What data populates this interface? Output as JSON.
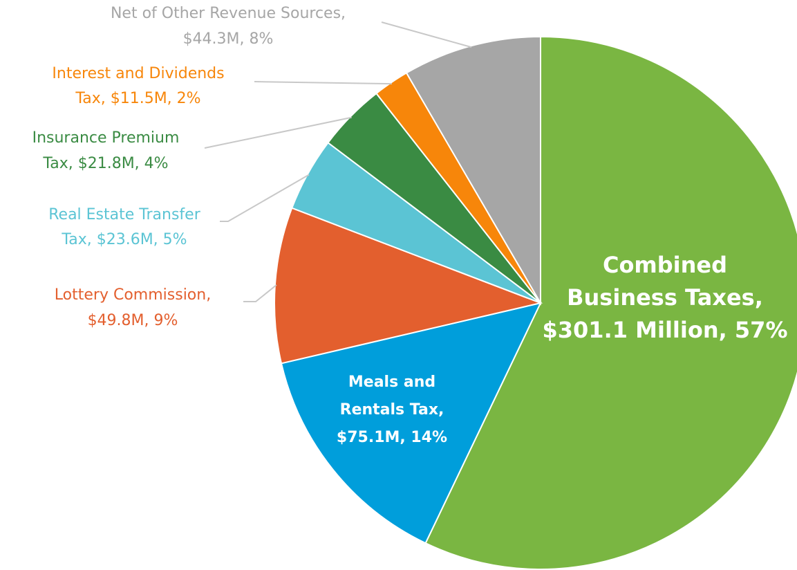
{
  "chart_data": {
    "type": "pie",
    "values": [
      301.1,
      75.1,
      49.8,
      23.6,
      21.8,
      11.5,
      44.3
    ],
    "labels": [
      [
        "Combined",
        "Business Taxes,",
        "$301.1 Million, 57%"
      ],
      [
        "Meals and",
        "Rentals Tax,",
        "$75.1M, 14%"
      ],
      [
        "Lottery Commission,",
        "$49.8M, 9%"
      ],
      [
        "Real Estate Transfer",
        "Tax, $23.6M, 5%"
      ],
      [
        "Insurance Premium",
        "Tax, $21.8M, 4%"
      ],
      [
        "Interest and Dividends",
        "Tax, $11.5M, 2%"
      ],
      [
        "Net of Other Revenue Sources,",
        "$44.3M, 8%"
      ]
    ],
    "colors": [
      "#7ab642",
      "#009edb",
      "#e35f2e",
      "#5bc4d4",
      "#3a8b43",
      "#f7860a",
      "#a6a6a6"
    ]
  }
}
